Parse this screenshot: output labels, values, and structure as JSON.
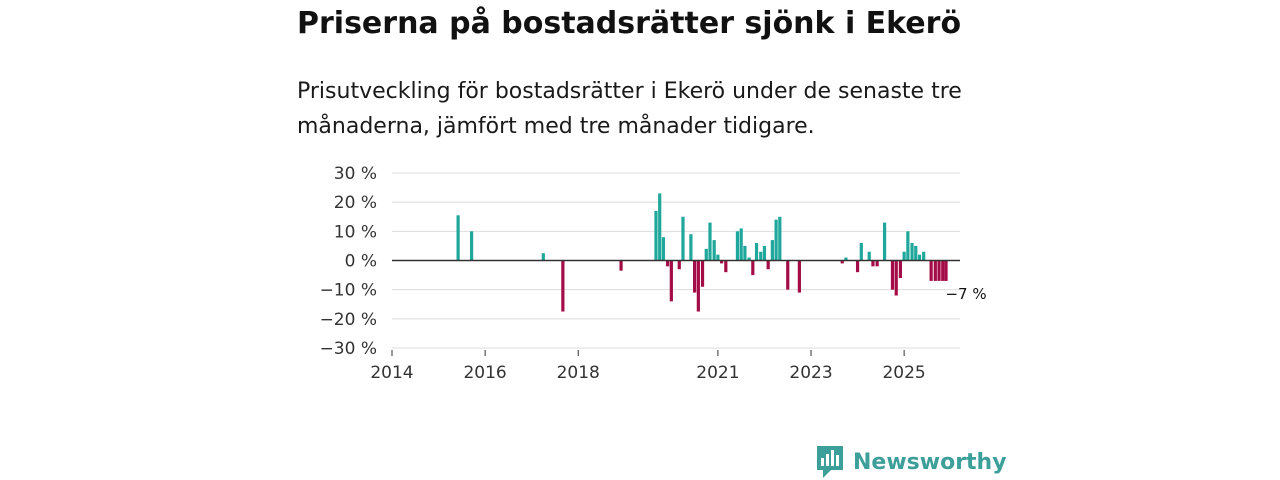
{
  "title": "Priserna på bostadsrätter sjönk i Ekerö",
  "subtitle": "Prisutveckling för bostadsrätter i Ekerö under de senaste tre månaderna, jämfört med tre månader tidigare.",
  "brand": {
    "name": "Newsworthy",
    "color": "#3d9f99"
  },
  "chart_data": {
    "type": "bar",
    "title": "Priserna på bostadsrätter sjönk i Ekerö",
    "xlabel": "",
    "ylabel": "",
    "unit": "%",
    "ylim": [
      -30,
      30
    ],
    "yticks": [
      30,
      20,
      10,
      0,
      -10,
      -20,
      -30
    ],
    "ytick_labels": [
      "30 %",
      "20 %",
      "10 %",
      "0 %",
      "−10 %",
      "−20 %",
      "−30 %"
    ],
    "xlim": [
      2014.0,
      2026.2
    ],
    "xticks": [
      2014,
      2016,
      2018,
      2021,
      2023,
      2025
    ],
    "xtick_labels": [
      "2014",
      "2016",
      "2018",
      "2021",
      "2023",
      "2025"
    ],
    "grid": true,
    "colors": {
      "positive": "#1fa79c",
      "negative": "#a30c47",
      "zero_line": "#333333",
      "grid": "#dddddd"
    },
    "annotation": {
      "text": "−7 %",
      "x": 2025.9,
      "value": -7
    },
    "series": [
      {
        "name": "Prisutveckling",
        "x": [
          2015.42,
          2015.71,
          2017.25,
          2017.67,
          2018.92,
          2019.67,
          2019.75,
          2019.83,
          2019.92,
          2020.0,
          2020.08,
          2020.17,
          2020.25,
          2020.42,
          2020.5,
          2020.58,
          2020.67,
          2020.75,
          2020.83,
          2020.92,
          2021.0,
          2021.08,
          2021.17,
          2021.25,
          2021.42,
          2021.5,
          2021.58,
          2021.67,
          2021.75,
          2021.83,
          2021.92,
          2022.0,
          2022.08,
          2022.17,
          2022.25,
          2022.33,
          2022.5,
          2022.75,
          2023.67,
          2023.75,
          2024.0,
          2024.08,
          2024.17,
          2024.25,
          2024.33,
          2024.42,
          2024.58,
          2024.75,
          2024.83,
          2024.92,
          2025.0,
          2025.08,
          2025.17,
          2025.25,
          2025.33,
          2025.42,
          2025.5,
          2025.58,
          2025.67,
          2025.75,
          2025.83,
          2025.9
        ],
        "values": [
          15.5,
          10,
          2.5,
          -17.5,
          -3.5,
          17,
          23,
          8,
          -2,
          -14,
          0,
          -3,
          15,
          9,
          -11,
          -17.5,
          -9,
          4,
          13,
          7,
          2,
          -1,
          -4,
          0,
          10,
          11,
          5,
          1,
          -5,
          6,
          3,
          5,
          -3,
          7,
          14,
          15,
          -10,
          -11,
          -1,
          1,
          -4,
          6,
          0,
          3,
          -2,
          -2,
          13,
          -10,
          -12,
          -6,
          3,
          10,
          6,
          5,
          2,
          3,
          0,
          -7,
          -7,
          -7,
          -7,
          -7
        ]
      }
    ]
  }
}
